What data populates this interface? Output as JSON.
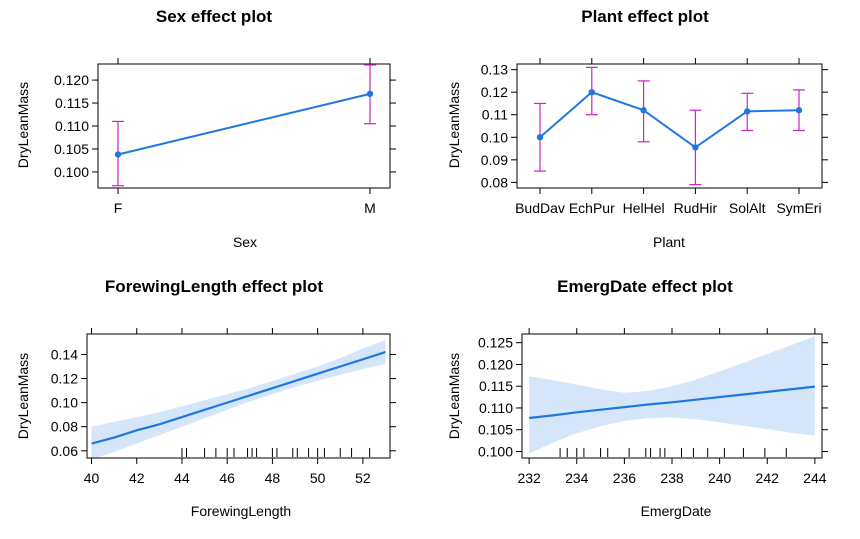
{
  "chart_data": [
    {
      "type": "line",
      "title": "Sex effect plot",
      "xlabel": "Sex",
      "ylabel": "DryLeanMass",
      "categories": [
        "F",
        "M"
      ],
      "y_ticks": [
        "0.100",
        "0.105",
        "0.110",
        "0.115",
        "0.120"
      ],
      "ylim": [
        0.0965,
        0.1235
      ],
      "series": [
        {
          "values": [
            0.1038,
            0.117
          ],
          "lower": [
            0.097,
            0.1105
          ],
          "upper": [
            0.111,
            0.1233
          ]
        }
      ],
      "colors": {
        "line": "#1e78e0",
        "ci": "#cc22cc"
      }
    },
    {
      "type": "line",
      "title": "Plant effect plot",
      "xlabel": "Plant",
      "ylabel": "DryLeanMass",
      "categories": [
        "BudDav",
        "EchPur",
        "HelHel",
        "RudHir",
        "SolAlt",
        "SymEri"
      ],
      "y_ticks": [
        "0.08",
        "0.09",
        "0.10",
        "0.11",
        "0.12",
        "0.13"
      ],
      "ylim": [
        0.0775,
        0.1325
      ],
      "series": [
        {
          "values": [
            0.1,
            0.12,
            0.112,
            0.0955,
            0.1115,
            0.112
          ],
          "lower": [
            0.085,
            0.11,
            0.098,
            0.079,
            0.103,
            0.103
          ],
          "upper": [
            0.115,
            0.131,
            0.125,
            0.112,
            0.1195,
            0.121
          ]
        }
      ],
      "colors": {
        "line": "#1e78e0",
        "ci": "#cc22cc"
      }
    },
    {
      "type": "line",
      "title": "ForewingLength effect plot",
      "xlabel": "ForewingLength",
      "ylabel": "DryLeanMass",
      "x_ticks": [
        40,
        42,
        44,
        46,
        48,
        50,
        52
      ],
      "y_ticks": [
        "0.06",
        "0.08",
        "0.10",
        "0.12",
        "0.14"
      ],
      "xlim": [
        39.8,
        53.2
      ],
      "ylim": [
        0.054,
        0.157
      ],
      "x": [
        40,
        41,
        42,
        43,
        44,
        45,
        46,
        47,
        48,
        49,
        50,
        51,
        52,
        53
      ],
      "y": [
        0.066,
        0.071,
        0.077,
        0.082,
        0.088,
        0.094,
        0.1,
        0.106,
        0.112,
        0.118,
        0.124,
        0.13,
        0.136,
        0.142
      ],
      "ci_lower": [
        0.053,
        0.059,
        0.066,
        0.073,
        0.08,
        0.087,
        0.094,
        0.101,
        0.107,
        0.113,
        0.118,
        0.123,
        0.128,
        0.132
      ],
      "ci_upper": [
        0.08,
        0.084,
        0.088,
        0.092,
        0.097,
        0.102,
        0.107,
        0.112,
        0.118,
        0.124,
        0.13,
        0.137,
        0.145,
        0.152
      ],
      "rug": [
        44,
        44.2,
        45,
        45.5,
        46,
        46.3,
        46.9,
        47.1,
        47.3,
        48,
        48.2,
        48.9,
        49.1,
        49.6,
        50,
        50.3,
        51,
        51.5,
        52.3
      ],
      "colors": {
        "line": "#1e78e0",
        "band": "#d6e6fa"
      }
    },
    {
      "type": "line",
      "title": "EmergDate effect plot",
      "xlabel": "EmergDate",
      "ylabel": "DryLeanMass",
      "x_ticks": [
        232,
        234,
        236,
        238,
        240,
        242,
        244
      ],
      "y_ticks": [
        "0.100",
        "0.105",
        "0.110",
        "0.115",
        "0.120",
        "0.125"
      ],
      "xlim": [
        231.7,
        244.3
      ],
      "ylim": [
        0.0985,
        0.127
      ],
      "x": [
        232,
        233,
        234,
        235,
        236,
        237,
        238,
        239,
        240,
        241,
        242,
        243,
        244
      ],
      "y": [
        0.1077,
        0.1083,
        0.109,
        0.1096,
        0.1102,
        0.1108,
        0.1113,
        0.1119,
        0.1125,
        0.1131,
        0.1137,
        0.1143,
        0.1149
      ],
      "ci_lower": [
        0.0995,
        0.102,
        0.1042,
        0.1058,
        0.107,
        0.1077,
        0.1078,
        0.1074,
        0.1067,
        0.1059,
        0.1051,
        0.1043,
        0.1036
      ],
      "ci_upper": [
        0.1173,
        0.1164,
        0.1154,
        0.1143,
        0.1135,
        0.1139,
        0.115,
        0.1165,
        0.1184,
        0.1204,
        0.1224,
        0.1244,
        0.1265
      ],
      "rug": [
        233.3,
        233.6,
        234,
        234.3,
        235,
        235.3,
        236.2,
        236.9,
        237.1,
        237.5,
        237.7,
        238.4,
        238.9,
        239.5,
        240.2,
        241,
        241.9,
        242.8
      ],
      "colors": {
        "line": "#1e78e0",
        "band": "#d6e6fa"
      }
    }
  ]
}
